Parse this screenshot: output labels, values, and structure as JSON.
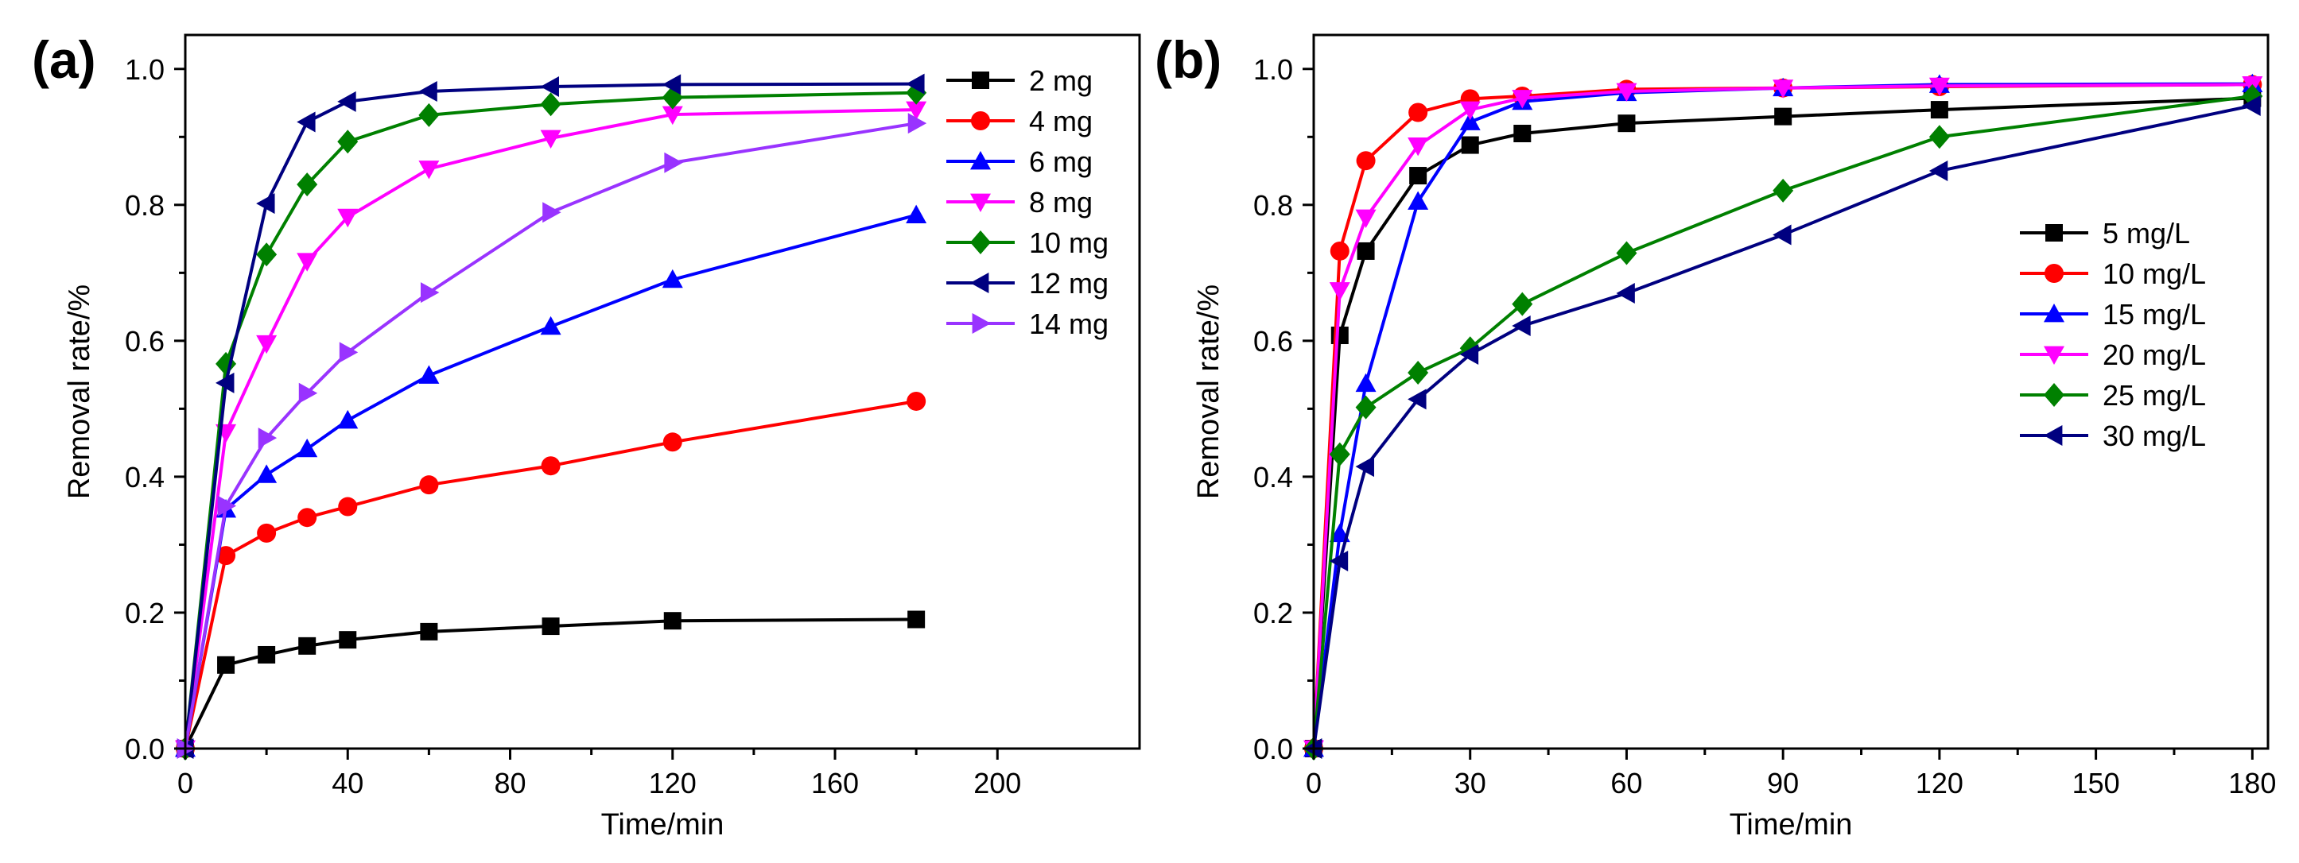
{
  "chart_data": [
    {
      "type": "line",
      "panel_label": "(a)",
      "xlabel": "Time/min",
      "ylabel": "Removal rate/%",
      "xlim": [
        0,
        235
      ],
      "ylim": [
        0,
        1.05
      ],
      "xticks": [
        0,
        40,
        80,
        120,
        160,
        200
      ],
      "yticks": [
        0.0,
        0.2,
        0.4,
        0.6,
        0.8,
        1.0
      ],
      "ytick_labels": [
        "0.0",
        "0.2",
        "0.4",
        "0.6",
        "0.8",
        "1.0"
      ],
      "legend_position": "top-right",
      "x": [
        0,
        10,
        20,
        30,
        40,
        60,
        90,
        120,
        180
      ],
      "series": [
        {
          "name": "2 mg",
          "color": "#000000",
          "marker": "square",
          "values": [
            0.0,
            0.123,
            0.138,
            0.151,
            0.16,
            0.172,
            0.18,
            0.188,
            0.19
          ]
        },
        {
          "name": "4 mg",
          "color": "#ff0000",
          "marker": "circle",
          "values": [
            0.0,
            0.284,
            0.317,
            0.34,
            0.356,
            0.388,
            0.416,
            0.451,
            0.511
          ]
        },
        {
          "name": "6 mg",
          "color": "#0000ff",
          "marker": "triangle-up",
          "values": [
            0.0,
            0.352,
            0.403,
            0.441,
            0.483,
            0.549,
            0.621,
            0.69,
            0.785
          ]
        },
        {
          "name": "8 mg",
          "color": "#ff00ff",
          "marker": "triangle-down",
          "values": [
            0.0,
            0.465,
            0.596,
            0.717,
            0.782,
            0.853,
            0.898,
            0.933,
            0.94
          ]
        },
        {
          "name": "10 mg",
          "color": "#008000",
          "marker": "diamond",
          "values": [
            0.0,
            0.566,
            0.727,
            0.83,
            0.893,
            0.932,
            0.948,
            0.958,
            0.965
          ]
        },
        {
          "name": "12 mg",
          "color": "#000080",
          "marker": "triangle-left",
          "values": [
            0.0,
            0.538,
            0.802,
            0.922,
            0.952,
            0.967,
            0.974,
            0.977,
            0.978
          ]
        },
        {
          "name": "14 mg",
          "color": "#9933ff",
          "marker": "triangle-right",
          "values": [
            0.0,
            0.357,
            0.457,
            0.523,
            0.583,
            0.671,
            0.789,
            0.862,
            0.92
          ]
        }
      ]
    },
    {
      "type": "line",
      "panel_label": "(b)",
      "xlabel": "Time/min",
      "ylabel": "Removal rate/%",
      "xlim": [
        0,
        183
      ],
      "ylim": [
        0,
        1.05
      ],
      "xticks": [
        0,
        30,
        60,
        90,
        120,
        150,
        180
      ],
      "yticks": [
        0.0,
        0.2,
        0.4,
        0.6,
        0.8,
        1.0
      ],
      "ytick_labels": [
        "0.0",
        "0.2",
        "0.4",
        "0.6",
        "0.8",
        "1.0"
      ],
      "legend_position": "center-right",
      "x": [
        0,
        5,
        10,
        20,
        30,
        40,
        60,
        90,
        120,
        180
      ],
      "series": [
        {
          "name": "5 mg/L",
          "color": "#000000",
          "marker": "square",
          "values": [
            0.0,
            0.608,
            0.732,
            0.843,
            0.888,
            0.905,
            0.92,
            0.93,
            0.94,
            0.957
          ]
        },
        {
          "name": "10 mg/L",
          "color": "#ff0000",
          "marker": "circle",
          "values": [
            0.0,
            0.732,
            0.865,
            0.936,
            0.956,
            0.96,
            0.97,
            0.972,
            0.974,
            0.977
          ]
        },
        {
          "name": "15 mg/L",
          "color": "#0000ff",
          "marker": "triangle-up",
          "values": [
            0.0,
            0.316,
            0.537,
            0.805,
            0.922,
            0.952,
            0.965,
            0.972,
            0.977,
            0.978
          ]
        },
        {
          "name": "20 mg/L",
          "color": "#ff00ff",
          "marker": "triangle-down",
          "values": [
            0.0,
            0.674,
            0.781,
            0.887,
            0.94,
            0.957,
            0.967,
            0.972,
            0.975,
            0.977
          ]
        },
        {
          "name": "25 mg/L",
          "color": "#008000",
          "marker": "diamond",
          "values": [
            0.0,
            0.433,
            0.502,
            0.553,
            0.589,
            0.654,
            0.729,
            0.821,
            0.9,
            0.96
          ]
        },
        {
          "name": "30 mg/L",
          "color": "#000080",
          "marker": "triangle-left",
          "values": [
            0.0,
            0.276,
            0.415,
            0.514,
            0.58,
            0.622,
            0.67,
            0.756,
            0.85,
            0.946
          ]
        }
      ]
    }
  ]
}
